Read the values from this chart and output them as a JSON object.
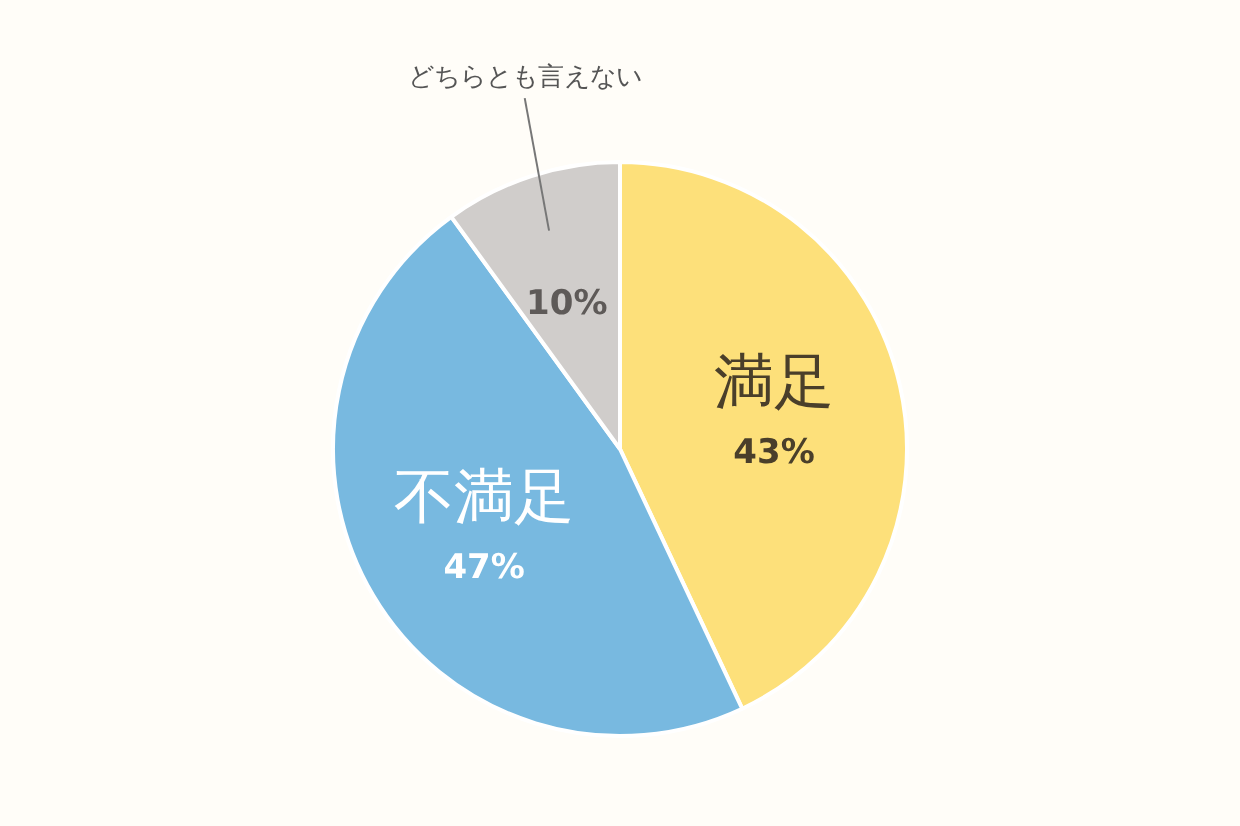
{
  "chart_data": {
    "type": "pie",
    "categories": [
      "満足",
      "不満足",
      "どちらとも言えない"
    ],
    "values": [
      43,
      47,
      10
    ],
    "colors": [
      "#fde07a",
      "#78b9e0",
      "#d0cdcb"
    ],
    "value_labels": [
      "43%",
      "47%",
      "10%"
    ],
    "legend": false
  }
}
